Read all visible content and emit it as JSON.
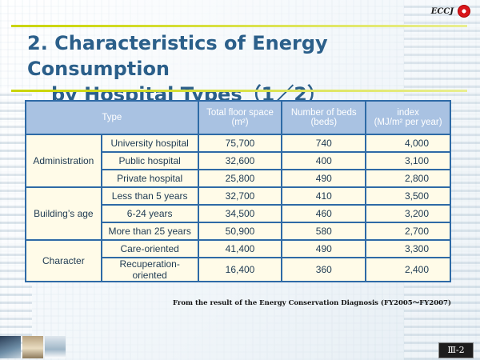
{
  "logo": {
    "text": "ECCJ"
  },
  "title": {
    "line1": "2. Characteristics of Energy Consumption",
    "line2": "by Hospital Types（1／2）"
  },
  "table": {
    "headers": {
      "type": "Type",
      "floor_space": "Total floor space",
      "floor_space_unit": "(m²)",
      "beds": "Number of beds",
      "beds_unit": "(beds)",
      "index": "index",
      "index_unit": "(MJ/m² per year)"
    },
    "groups": [
      {
        "name": "Administration",
        "rows": [
          {
            "type": "University hospital",
            "floor_space": "75,700",
            "beds": "740",
            "index": "4,000"
          },
          {
            "type": "Public hospital",
            "floor_space": "32,600",
            "beds": "400",
            "index": "3,100"
          },
          {
            "type": "Private hospital",
            "floor_space": "25,800",
            "beds": "490",
            "index": "2,800"
          }
        ]
      },
      {
        "name": "Building’s age",
        "rows": [
          {
            "type": "Less than 5 years",
            "floor_space": "32,700",
            "beds": "410",
            "index": "3,500"
          },
          {
            "type": "6-24 years",
            "floor_space": "34,500",
            "beds": "460",
            "index": "3,200"
          },
          {
            "type": "More than 25 years",
            "floor_space": "50,900",
            "beds": "580",
            "index": "2,700"
          }
        ]
      },
      {
        "name": "Character",
        "rows": [
          {
            "type": "Care-oriented",
            "floor_space": "41,400",
            "beds": "490",
            "index": "3,300"
          },
          {
            "type": "Recuperation-oriented",
            "floor_space": "16,400",
            "beds": "360",
            "index": "2,400"
          }
        ]
      }
    ]
  },
  "source": "From the result of the Energy Conservation Diagnosis (FY2005～FY2007)",
  "page_number": "Ⅲ-2"
}
